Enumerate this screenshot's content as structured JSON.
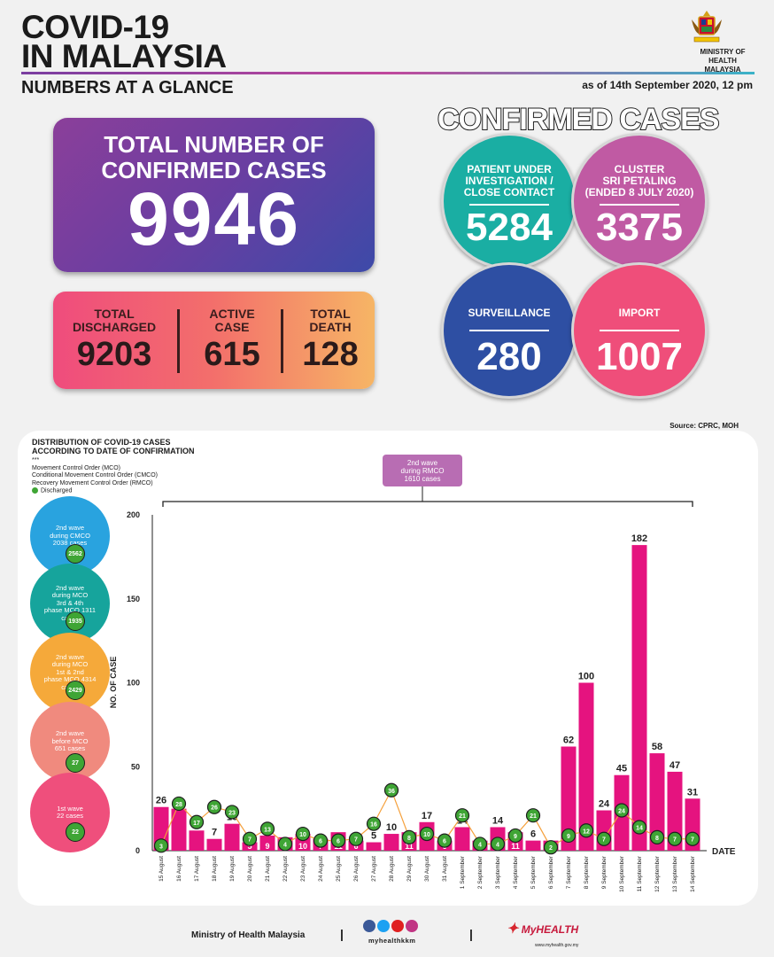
{
  "header": {
    "title_line1": "COVID-19",
    "title_line2": "IN MALAYSIA",
    "subtitle": "NUMBERS AT A GLANCE",
    "as_of": "as of 14th September 2020, 12 pm",
    "ministry": "MINISTRY OF HEALTH MALAYSIA"
  },
  "total": {
    "label_line1": "TOTAL NUMBER OF",
    "label_line2": "CONFIRMED CASES",
    "value": "9946"
  },
  "stats": {
    "discharged_label1": "TOTAL",
    "discharged_label2": "DISCHARGED",
    "discharged_value": "9203",
    "active_label1": "ACTIVE",
    "active_label2": "CASE",
    "active_value": "615",
    "death_label1": "TOTAL",
    "death_label2": "DEATH",
    "death_value": "128"
  },
  "confirmed": {
    "title": "CONFIRMED CASES",
    "pui_label1": "PATIENT UNDER",
    "pui_label2": "INVESTIGATION /",
    "pui_label3": "CLOSE CONTACT",
    "pui_value": "5284",
    "cluster_label1": "CLUSTER",
    "cluster_label2": "SRI PETALING",
    "cluster_label3": "(ENDED 8 JULY 2020)",
    "cluster_value": "3375",
    "surveillance_label": "SURVEILLANCE",
    "surveillance_value": "280",
    "import_label": "IMPORT",
    "import_value": "1007",
    "colors": {
      "pui": "#1aaea3",
      "cluster": "#c05aa3",
      "surveillance": "#2e4fa3",
      "import": "#ef4e7a"
    }
  },
  "source": "Source: CPRC, MOH",
  "distribution": {
    "title_line1": "DISTRIBUTION OF COVID-19 CASES",
    "title_line2": "ACCORDING TO DATE OF CONFIRMATION",
    "dots": "***",
    "legend1": "Movement Control Order (MCO)",
    "legend2": "Conditional Movement Control Order (CMCO)",
    "legend3": "Recovery Movement Control Order (RMCO)",
    "legend4": "Discharged",
    "rmco_label1": "2nd wave",
    "rmco_label2": "during RMCO",
    "rmco_label3": "1610 cases"
  },
  "waves": [
    {
      "l1": "2nd wave",
      "l2": "during CMCO",
      "l3": "2038 cases",
      "l4": "",
      "discharged": "2562",
      "color": "#29a3df"
    },
    {
      "l1": "2nd wave",
      "l2": "during MCO",
      "l3": "3rd & 4th",
      "l4": "phase MCO 1311 cases",
      "discharged": "1935",
      "color": "#16a49c"
    },
    {
      "l1": "2nd wave",
      "l2": "during MCO",
      "l3": "1st & 2nd",
      "l4": "phase MCO 4314 cases",
      "discharged": "2429",
      "color": "#f5a93a"
    },
    {
      "l1": "2nd wave",
      "l2": "before MCO",
      "l3": "651 cases",
      "l4": "",
      "discharged": "27",
      "color": "#f08a7e"
    },
    {
      "l1": "1st wave",
      "l2": "22 cases",
      "l3": "",
      "l4": "",
      "discharged": "22",
      "color": "#ef4f7c"
    }
  ],
  "chart_data": {
    "type": "bar",
    "title": "DISTRIBUTION OF COVID-19 CASES ACCORDING TO DATE OF CONFIRMATION",
    "xlabel": "DATE",
    "ylabel": "NO. OF CASE",
    "ylim": [
      0,
      200
    ],
    "yticks": [
      0,
      50,
      100,
      150,
      200
    ],
    "categories": [
      "15 August",
      "16 August",
      "17 August",
      "18 August",
      "19 August",
      "20 August",
      "21 August",
      "22 August",
      "23 August",
      "24 August",
      "25 August",
      "26 August",
      "27 August",
      "28 August",
      "29 August",
      "30 August",
      "31 August",
      "1 September",
      "2 September",
      "3 September",
      "4 September",
      "5 September",
      "6 September",
      "7 September",
      "8 September",
      "9 September",
      "10 September",
      "11 September",
      "12 September",
      "13 September",
      "14 September"
    ],
    "series": [
      {
        "name": "New cases",
        "values": [
          26,
          25,
          12,
          7,
          16,
          5,
          9,
          8,
          10,
          7,
          11,
          6,
          5,
          10,
          11,
          17,
          6,
          14,
          6,
          14,
          11,
          6,
          6,
          62,
          100,
          24,
          45,
          182,
          58,
          47,
          31
        ]
      },
      {
        "name": "Discharged",
        "values": [
          3,
          28,
          17,
          26,
          23,
          7,
          13,
          4,
          10,
          6,
          6,
          7,
          16,
          36,
          8,
          10,
          6,
          21,
          4,
          4,
          9,
          21,
          2,
          9,
          12,
          7,
          24,
          14,
          8,
          7,
          7
        ]
      }
    ],
    "bar_color": "#e5137f",
    "line_color": "#f5a03b",
    "discharged_color": "#3fa535"
  },
  "footer": {
    "ministry": "Ministry of Health Malaysia",
    "handle": "myhealthkkm",
    "brand": "MyHEALTH",
    "url": "www.myhealth.gov.my"
  }
}
